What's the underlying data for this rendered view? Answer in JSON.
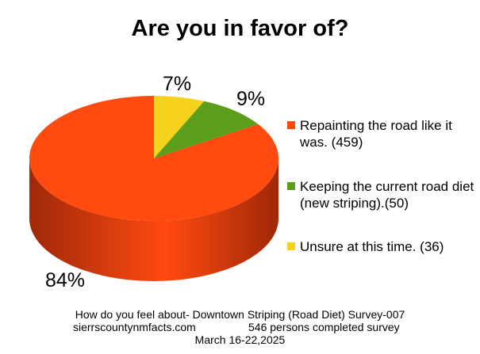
{
  "chart_data": {
    "type": "pie",
    "title": "Are you in favor of?",
    "slices": [
      {
        "label": "Repainting the road like it was. (459)",
        "value": 459,
        "percent_label": "84%",
        "color": "#ff4a10",
        "side_color": "#a02808"
      },
      {
        "label": "Keeping the current road diet (new striping).(50)",
        "value": 50,
        "percent_label": "9%",
        "color": "#5a9e1c",
        "side_color": "#3a6a10"
      },
      {
        "label": "Unsure at this time. (36)",
        "value": 36,
        "percent_label": "7%",
        "color": "#f7d21c",
        "side_color": "#b89610"
      }
    ],
    "legend_position": "right"
  },
  "footer": {
    "line1": "How do you feel about- Downtown Striping (Road Diet) Survey-007",
    "site": "sierrscountynmfacts.com",
    "count": "546 persons completed survey",
    "dates": "March 16-22,2025"
  }
}
